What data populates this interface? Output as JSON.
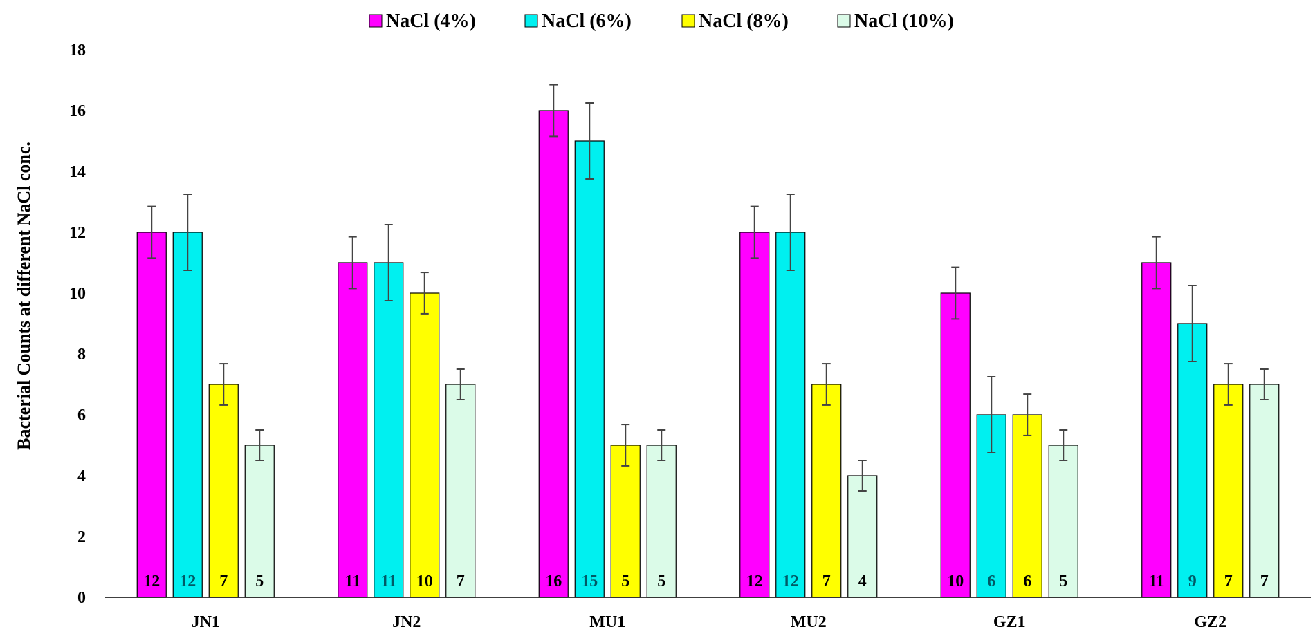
{
  "chart_data": {
    "type": "bar",
    "title": "",
    "xlabel": "",
    "ylabel": "Bacterial Counts at different NaCl conc.",
    "ylim": [
      0,
      18
    ],
    "yticks": [
      0,
      2,
      4,
      6,
      8,
      10,
      12,
      14,
      16,
      18
    ],
    "grid": false,
    "legend_position": "top-center",
    "categories": [
      "JN1",
      "JN2",
      "MU1",
      "MU2",
      "GZ1",
      "GZ2"
    ],
    "series": [
      {
        "name": "NaCl (4%)",
        "color": "#ff00ff",
        "values": [
          12,
          11,
          16,
          12,
          10,
          11
        ],
        "errors": [
          0.85,
          0.85,
          0.85,
          0.85,
          0.85,
          0.85
        ],
        "value_labels": [
          "12",
          "11",
          "16",
          "12",
          "10",
          "11"
        ]
      },
      {
        "name": "NaCl (6%)",
        "color": "#00f0f0",
        "values": [
          12,
          11,
          15,
          12,
          6,
          9
        ],
        "errors": [
          1.25,
          1.25,
          1.25,
          1.25,
          1.25,
          1.25
        ],
        "value_labels": [
          "12",
          "11",
          "15",
          "12",
          "6",
          "9"
        ]
      },
      {
        "name": "NaCl (8%)",
        "color": "#ffff00",
        "values": [
          7,
          10,
          5,
          7,
          6,
          7
        ],
        "errors": [
          0.68,
          0.68,
          0.68,
          0.68,
          0.68,
          0.68
        ],
        "value_labels": [
          "7",
          "10",
          "5",
          "7",
          "6",
          "7"
        ]
      },
      {
        "name": "NaCl (10%)",
        "color": "#dbfbe8",
        "values": [
          5,
          7,
          5,
          4,
          5,
          7
        ],
        "errors": [
          0.5,
          0.5,
          0.5,
          0.5,
          0.5,
          0.5
        ],
        "value_labels": [
          "5",
          "7",
          "5",
          "4",
          "5",
          "7"
        ]
      }
    ]
  }
}
